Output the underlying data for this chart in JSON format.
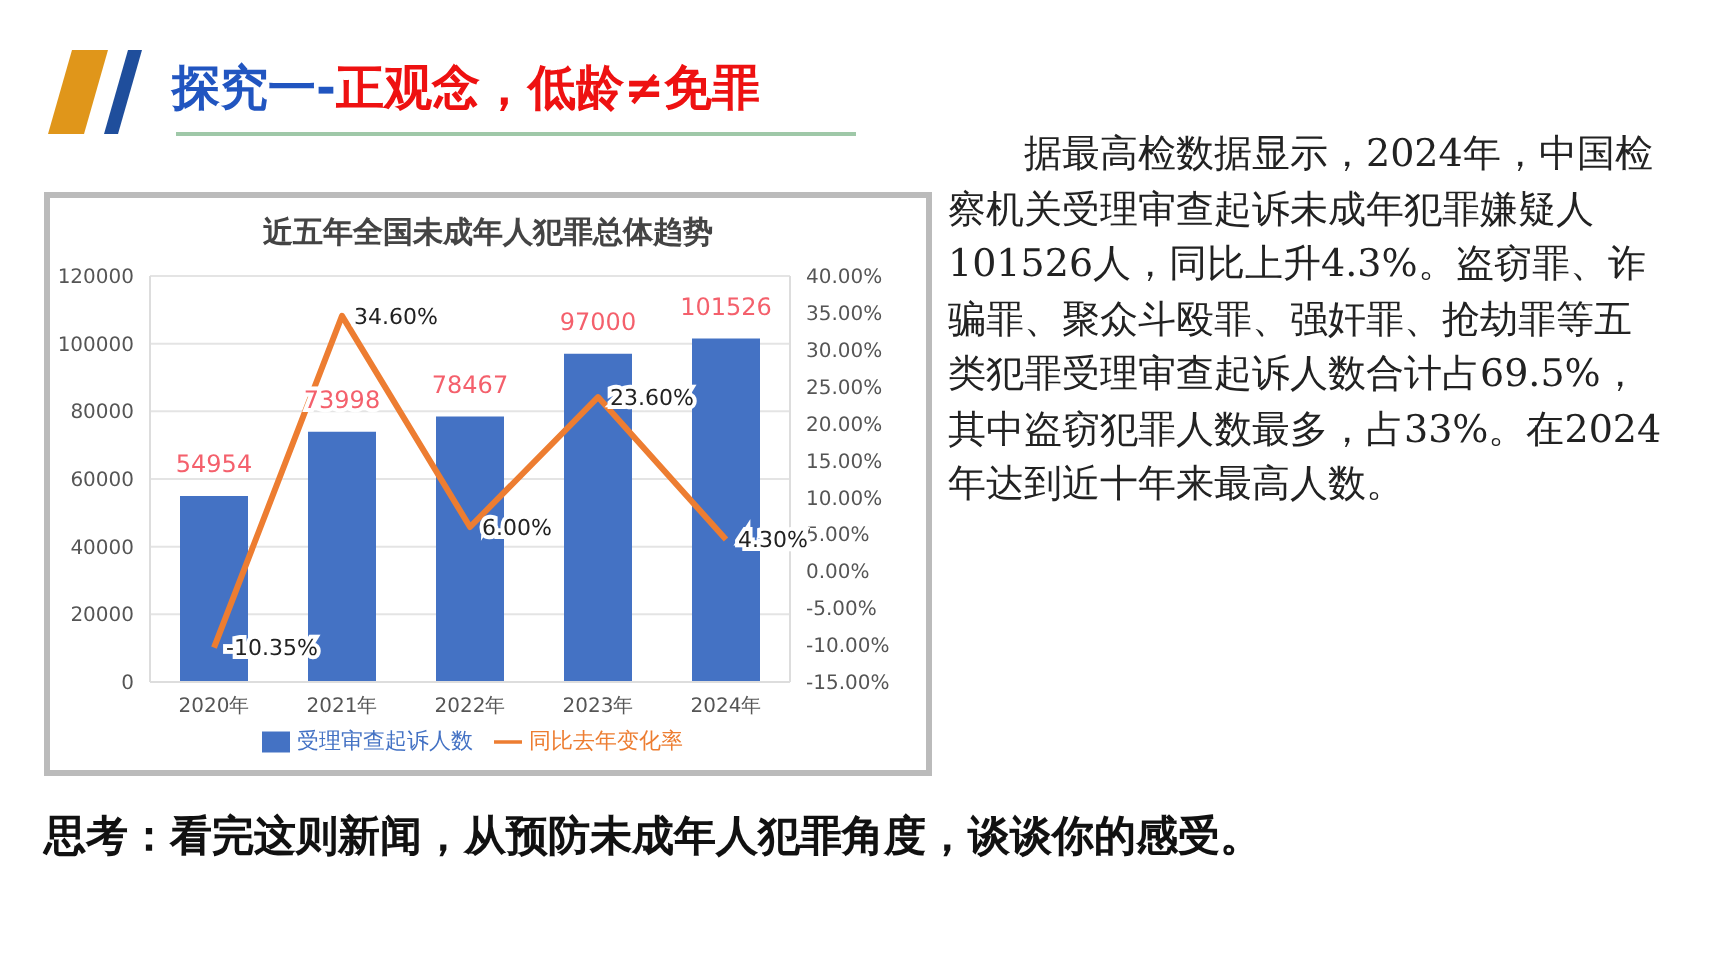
{
  "chart_data": {
    "type": "bar",
    "title": "近五年全国未成年人犯罪总体趋势",
    "categories": [
      "2020年",
      "2021年",
      "2022年",
      "2023年",
      "2024年"
    ],
    "series": [
      {
        "name": "受理审查起诉人数",
        "color": "#4472c4",
        "values": [
          54954,
          73998,
          78467,
          97000,
          101526
        ],
        "value_labels": [
          "54954",
          "73998",
          "78467",
          "97000",
          "101526"
        ]
      },
      {
        "name": "同比去年变化率",
        "type": "line",
        "axis": "y2",
        "color": "#ed7d31",
        "values": [
          -10.35,
          34.6,
          6.0,
          23.6,
          4.3
        ],
        "value_labels": [
          "-10.35%",
          "34.60%",
          "6.00%",
          "23.60%",
          "4.30%"
        ]
      }
    ],
    "ylim": [
      0,
      120000
    ],
    "yticks": [
      0,
      20000,
      40000,
      60000,
      80000,
      100000,
      120000
    ],
    "y2lim": [
      -15,
      40
    ],
    "y2ticks": [
      {
        "value": -15,
        "label": "-15.00%"
      },
      {
        "value": -10,
        "label": "-10.00%"
      },
      {
        "value": -5,
        "label": "-5.00%"
      },
      {
        "value": 0,
        "label": "0.00%"
      },
      {
        "value": 5,
        "label": "5.00%"
      },
      {
        "value": 10,
        "label": "10.00%"
      },
      {
        "value": 15,
        "label": "15.00%"
      },
      {
        "value": 20,
        "label": "20.00%"
      },
      {
        "value": 25,
        "label": "25.00%"
      },
      {
        "value": 30,
        "label": "30.00%"
      },
      {
        "value": 35,
        "label": "35.00%"
      },
      {
        "value": 40,
        "label": "40.00%"
      }
    ],
    "grid": "y",
    "legend": "bottom",
    "marker": "none",
    "line_style": "solid",
    "annotations": [
      "探究一-",
      "正观念，低龄≠免罪",
      "据最高检数据显示，2024年，中国检察机关受理审查起诉未成年犯罪嫌疑人101526人，同比上升4.3%。盗窃罪、诈骗罪、聚众斗殴罪、强奸罪、抢劫罪等五类犯罪受理审查起诉人数合计占69.5%，其中盗窃犯罪人数最多，占33%。在2024年达到近十年来最高人数。",
      "思考：看完这则新闻，从预防未成年人犯罪角度，谈谈你的感受。"
    ]
  }
}
